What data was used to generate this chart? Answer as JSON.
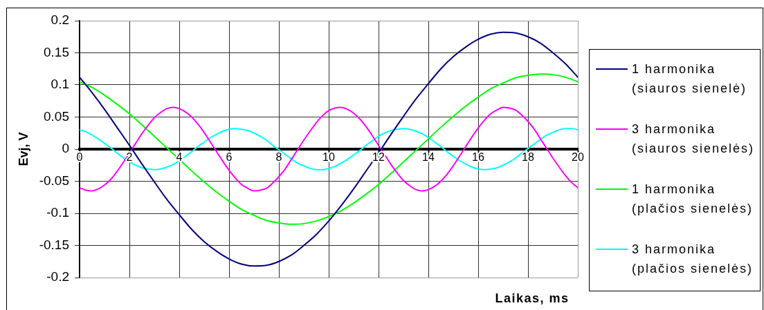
{
  "chart_data": {
    "type": "line",
    "xlabel": "Laikas, ms",
    "ylabel": "Evj, V",
    "xlim": [
      0,
      20
    ],
    "xticks": [
      0,
      2,
      4,
      6,
      8,
      10,
      12,
      14,
      16,
      18,
      20
    ],
    "ylim": [
      -0.2,
      0.2
    ],
    "yticks": [
      -0.2,
      -0.15,
      -0.1,
      -0.05,
      0,
      0.05,
      0.1,
      0.15,
      0.2
    ],
    "grid": true,
    "legend": "right",
    "marker": "none",
    "line_style": "solid",
    "series": [
      {
        "name": "1 harmonika (siauros sienelė)",
        "color": "#000080",
        "x": [
          0,
          0.5,
          1,
          1.5,
          2,
          2.5,
          3,
          3.5,
          4,
          4.5,
          5,
          5.5,
          6,
          6.5,
          7,
          7.5,
          8,
          8.5,
          9,
          9.5,
          10,
          10.5,
          11,
          11.5,
          12,
          12.5,
          13,
          13.5,
          14,
          14.5,
          15,
          15.5,
          16,
          16.5,
          17,
          17.5,
          18,
          18.5,
          19,
          19.5,
          20
        ],
        "values": [
          0.112,
          0.088,
          0.062,
          0.034,
          0.006,
          -0.023,
          -0.051,
          -0.078,
          -0.102,
          -0.125,
          -0.144,
          -0.159,
          -0.171,
          -0.179,
          -0.182,
          -0.181,
          -0.175,
          -0.165,
          -0.15,
          -0.133,
          -0.112,
          -0.088,
          -0.062,
          -0.034,
          -0.006,
          0.023,
          0.051,
          0.078,
          0.102,
          0.125,
          0.144,
          0.159,
          0.171,
          0.179,
          0.182,
          0.181,
          0.175,
          0.165,
          0.15,
          0.133,
          0.112
        ]
      },
      {
        "name": "3 harmonika (siauros sienelės)",
        "color": "#ff00ff",
        "x": [
          0,
          0.25,
          0.5,
          0.75,
          1,
          1.25,
          1.5,
          1.75,
          2,
          2.25,
          2.5,
          2.75,
          3,
          3.25,
          3.5,
          3.75,
          4,
          4.25,
          4.5,
          4.75,
          5,
          5.25,
          5.5,
          5.75,
          6,
          6.25,
          6.5,
          6.75,
          7,
          7.25,
          7.5,
          7.75,
          8,
          8.25,
          8.5,
          8.75,
          9,
          9.25,
          9.5,
          9.75,
          10,
          10.25,
          10.5,
          10.75,
          11,
          11.25,
          11.5,
          11.75,
          12,
          12.25,
          12.5,
          12.75,
          13,
          13.25,
          13.5,
          13.75,
          14,
          14.25,
          14.5,
          14.75,
          15,
          15.25,
          15.5,
          15.75,
          16,
          16.25,
          16.5,
          16.75,
          17,
          17.25,
          17.5,
          17.75,
          18,
          18.25,
          18.5,
          18.75,
          19,
          19.25,
          19.5,
          19.75,
          20
        ],
        "values": [
          -0.06,
          -0.064,
          -0.065,
          -0.062,
          -0.056,
          -0.047,
          -0.035,
          -0.021,
          -0.006,
          0.009,
          0.024,
          0.037,
          0.049,
          0.057,
          0.063,
          0.065,
          0.063,
          0.058,
          0.05,
          0.039,
          0.026,
          0.011,
          -0.004,
          -0.019,
          -0.033,
          -0.045,
          -0.055,
          -0.061,
          -0.065,
          -0.064,
          -0.061,
          -0.053,
          -0.043,
          -0.031,
          -0.016,
          -0.001,
          0.014,
          0.028,
          0.041,
          0.052,
          0.06,
          0.064,
          0.065,
          0.062,
          0.056,
          0.047,
          0.035,
          0.021,
          0.006,
          -0.009,
          -0.024,
          -0.037,
          -0.049,
          -0.057,
          -0.063,
          -0.065,
          -0.063,
          -0.058,
          -0.05,
          -0.039,
          -0.026,
          -0.011,
          0.004,
          0.019,
          0.033,
          0.045,
          0.055,
          0.061,
          0.065,
          0.064,
          0.061,
          0.053,
          0.043,
          0.031,
          0.016,
          0.001,
          -0.014,
          -0.028,
          -0.041,
          -0.052,
          -0.06
        ]
      },
      {
        "name": "1 harmonika (plačios sienelės)",
        "color": "#00ff00",
        "x": [
          0,
          0.5,
          1,
          1.5,
          2,
          2.5,
          3,
          3.5,
          4,
          4.5,
          5,
          5.5,
          6,
          6.5,
          7,
          7.5,
          8,
          8.5,
          9,
          9.5,
          10,
          10.5,
          11,
          11.5,
          12,
          12.5,
          13,
          13.5,
          14,
          14.5,
          15,
          15.5,
          16,
          16.5,
          17,
          17.5,
          18,
          18.5,
          19,
          19.5,
          20
        ],
        "values": [
          0.105,
          0.096,
          0.084,
          0.07,
          0.055,
          0.038,
          0.02,
          0.002,
          -0.016,
          -0.034,
          -0.051,
          -0.067,
          -0.081,
          -0.094,
          -0.103,
          -0.111,
          -0.115,
          -0.117,
          -0.116,
          -0.112,
          -0.105,
          -0.096,
          -0.084,
          -0.07,
          -0.055,
          -0.038,
          -0.02,
          -0.002,
          0.016,
          0.034,
          0.051,
          0.067,
          0.081,
          0.094,
          0.103,
          0.111,
          0.115,
          0.117,
          0.116,
          0.112,
          0.105
        ]
      },
      {
        "name": "3 harmonika (plačios sienelės)",
        "color": "#00ffff",
        "x": [
          0,
          0.25,
          0.5,
          0.75,
          1,
          1.25,
          1.5,
          1.75,
          2,
          2.25,
          2.5,
          2.75,
          3,
          3.25,
          3.5,
          3.75,
          4,
          4.25,
          4.5,
          4.75,
          5,
          5.25,
          5.5,
          5.75,
          6,
          6.25,
          6.5,
          6.75,
          7,
          7.25,
          7.5,
          7.75,
          8,
          8.25,
          8.5,
          8.75,
          9,
          9.25,
          9.5,
          9.75,
          10,
          10.25,
          10.5,
          10.75,
          11,
          11.25,
          11.5,
          11.75,
          12,
          12.25,
          12.5,
          12.75,
          13,
          13.25,
          13.5,
          13.75,
          14,
          14.25,
          14.5,
          14.75,
          15,
          15.25,
          15.5,
          15.75,
          16,
          16.25,
          16.5,
          16.75,
          17,
          17.25,
          17.5,
          17.75,
          18,
          18.25,
          18.5,
          18.75,
          19,
          19.25,
          19.5,
          19.75,
          20
        ],
        "values": [
          0.03,
          0.027,
          0.022,
          0.016,
          0.009,
          0.002,
          -0.006,
          -0.013,
          -0.02,
          -0.025,
          -0.029,
          -0.031,
          -0.032,
          -0.031,
          -0.028,
          -0.024,
          -0.018,
          -0.011,
          -0.004,
          0.004,
          0.011,
          0.018,
          0.023,
          0.028,
          0.031,
          0.032,
          0.031,
          0.029,
          0.025,
          0.02,
          0.014,
          0.006,
          -0.001,
          -0.008,
          -0.015,
          -0.022,
          -0.026,
          -0.03,
          -0.032,
          -0.032,
          -0.03,
          -0.027,
          -0.022,
          -0.016,
          -0.009,
          -0.002,
          0.006,
          0.013,
          0.02,
          0.025,
          0.029,
          0.031,
          0.032,
          0.031,
          0.028,
          0.024,
          0.018,
          0.011,
          0.004,
          -0.004,
          -0.011,
          -0.018,
          -0.023,
          -0.028,
          -0.031,
          -0.032,
          -0.031,
          -0.029,
          -0.025,
          -0.02,
          -0.014,
          -0.006,
          0.001,
          0.008,
          0.015,
          0.022,
          0.026,
          0.03,
          0.032,
          0.032,
          0.03
        ]
      }
    ]
  }
}
